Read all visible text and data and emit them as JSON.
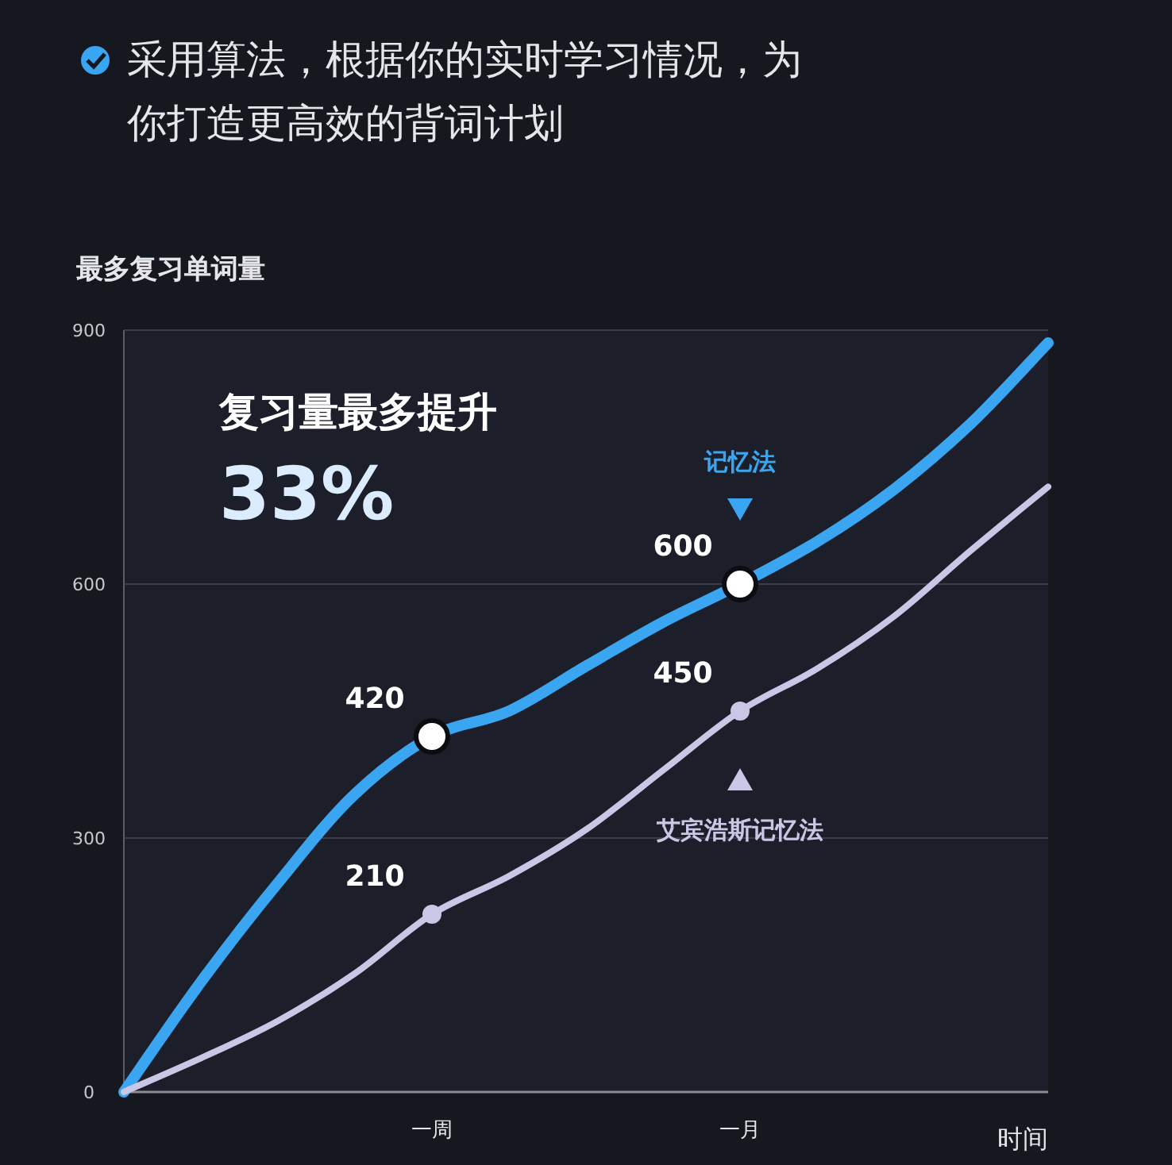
{
  "chart_data": {
    "type": "line",
    "title": "采用算法，根据你的实时学习情况，为你打造更高效的背词计划",
    "ylabel": "最多复习单词量",
    "xlabel": "时间",
    "annotations": [
      "复习量最多提升",
      "33%"
    ],
    "categories": [
      null,
      null,
      null,
      null,
      "一周",
      null,
      null,
      null,
      "一月",
      null,
      null,
      null,
      null
    ],
    "ylim": [
      0,
      900
    ],
    "yticks": [
      0,
      300,
      600,
      900
    ],
    "grid": "y",
    "series": [
      {
        "name": "记忆法",
        "color": "#3aa6f2",
        "values": [
          0,
          130,
          247,
          352,
          420,
          450,
          503,
          555,
          600,
          650,
          712,
          790,
          885
        ],
        "value_labels": [
          null,
          null,
          null,
          null,
          "420",
          null,
          null,
          null,
          "600",
          null,
          null,
          null,
          null
        ]
      },
      {
        "name": "艾宾浩斯记忆法",
        "color": "#c8c8e6",
        "values": [
          0,
          40,
          84,
          140,
          210,
          255,
          310,
          380,
          450,
          500,
          562,
          640,
          715
        ],
        "value_labels": [
          null,
          null,
          null,
          null,
          "210",
          null,
          null,
          null,
          "450",
          null,
          null,
          null,
          null
        ]
      }
    ]
  }
}
